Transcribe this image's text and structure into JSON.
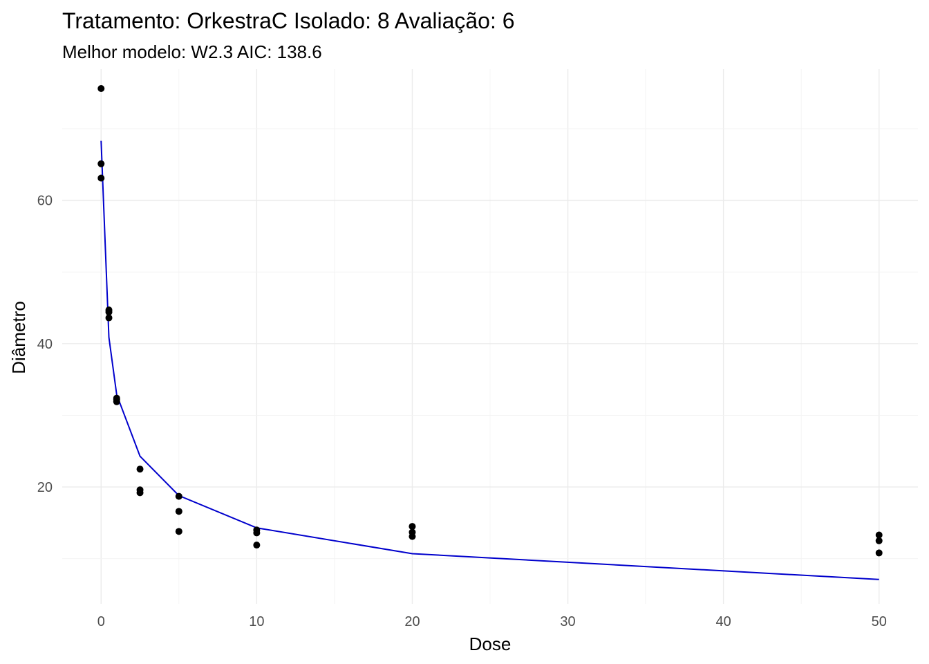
{
  "chart_data": {
    "type": "scatter",
    "title": "Tratamento: OrkestraC Isolado: 8 Avaliação: 6",
    "subtitle": "Melhor modelo: W2.3 AIC: 138.6",
    "xlabel": "Dose",
    "ylabel": "Diâmetro",
    "xlim": [
      -2.5,
      52.5
    ],
    "ylim": [
      3.7,
      78.3
    ],
    "x_ticks": [
      0,
      10,
      20,
      30,
      40,
      50
    ],
    "y_ticks": [
      20,
      40,
      60
    ],
    "grid": true,
    "points": [
      {
        "x": 0,
        "y": 75.6
      },
      {
        "x": 0,
        "y": 65.1
      },
      {
        "x": 0,
        "y": 63.1
      },
      {
        "x": 0.5,
        "y": 44.7
      },
      {
        "x": 0.5,
        "y": 44.4
      },
      {
        "x": 0.5,
        "y": 43.6
      },
      {
        "x": 1,
        "y": 32.4
      },
      {
        "x": 1,
        "y": 32.2
      },
      {
        "x": 1,
        "y": 31.9
      },
      {
        "x": 2.5,
        "y": 22.5
      },
      {
        "x": 2.5,
        "y": 19.6
      },
      {
        "x": 2.5,
        "y": 19.2
      },
      {
        "x": 5,
        "y": 18.7
      },
      {
        "x": 5,
        "y": 16.6
      },
      {
        "x": 5,
        "y": 13.8
      },
      {
        "x": 10,
        "y": 14.0
      },
      {
        "x": 10,
        "y": 13.6
      },
      {
        "x": 10,
        "y": 11.9
      },
      {
        "x": 20,
        "y": 14.5
      },
      {
        "x": 20,
        "y": 13.7
      },
      {
        "x": 20,
        "y": 13.1
      },
      {
        "x": 50,
        "y": 13.3
      },
      {
        "x": 50,
        "y": 12.5
      },
      {
        "x": 50,
        "y": 10.8
      }
    ],
    "fit_line": {
      "color": "#0000cc",
      "x": [
        0,
        0.5,
        1,
        2.5,
        5,
        10,
        20,
        50
      ],
      "y": [
        68.3,
        40.9,
        32.9,
        24.3,
        18.8,
        14.3,
        10.7,
        7.1
      ]
    },
    "point_color": "#000000"
  }
}
